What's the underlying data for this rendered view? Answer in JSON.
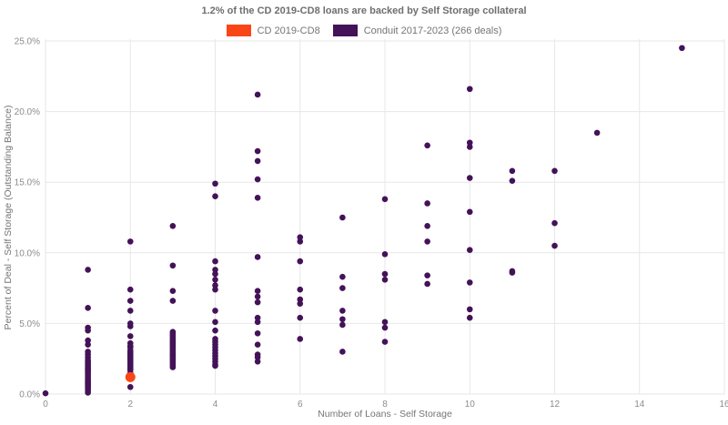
{
  "chart_data": {
    "type": "scatter",
    "title": "1.2% of the CD 2019-CD8 loans are backed by Self Storage collateral",
    "xlabel": "Number of Loans - Self Storage",
    "ylabel": "Percent of Deal - Self Storage (Outstanding Balance)",
    "xlim": [
      0,
      16
    ],
    "ylim": [
      0,
      25
    ],
    "x_ticks": [
      0,
      2,
      4,
      6,
      8,
      10,
      12,
      14,
      16
    ],
    "y_ticks": [
      0,
      5,
      10,
      15,
      20,
      25
    ],
    "y_tick_labels": [
      "0.0%",
      "5.0%",
      "10.0%",
      "15.0%",
      "20.0%",
      "25.0%"
    ],
    "grid": true,
    "legend_position": "top-center",
    "series": [
      {
        "name": "CD 2019-CD8",
        "color": "#fa4616",
        "marker_radius": 5.5,
        "points": [
          [
            2,
            1.2
          ]
        ]
      },
      {
        "name": "Conduit 2017-2023 (266 deals)",
        "color": "#441258",
        "marker_radius": 3.3,
        "points": [
          [
            0,
            0.05
          ],
          [
            1,
            8.8
          ],
          [
            1,
            6.1
          ],
          [
            1,
            4.7
          ],
          [
            1,
            4.5
          ],
          [
            1,
            3.8
          ],
          [
            1,
            3.5
          ],
          [
            1,
            3.0
          ],
          [
            1,
            2.8
          ],
          [
            1,
            2.6
          ],
          [
            1,
            2.4
          ],
          [
            1,
            2.3
          ],
          [
            1,
            2.2
          ],
          [
            1,
            2.1
          ],
          [
            1,
            2.0
          ],
          [
            1,
            1.9
          ],
          [
            1,
            1.8
          ],
          [
            1,
            1.7
          ],
          [
            1,
            1.6
          ],
          [
            1,
            1.5
          ],
          [
            1,
            1.4
          ],
          [
            1,
            1.3
          ],
          [
            1,
            1.2
          ],
          [
            1,
            1.1
          ],
          [
            1,
            1.0
          ],
          [
            1,
            0.9
          ],
          [
            1,
            0.8
          ],
          [
            1,
            0.7
          ],
          [
            1,
            0.6
          ],
          [
            1,
            0.5
          ],
          [
            1,
            0.4
          ],
          [
            1,
            0.3
          ],
          [
            1,
            0.2
          ],
          [
            1,
            0.1
          ],
          [
            2,
            10.8
          ],
          [
            2,
            7.4
          ],
          [
            2,
            6.6
          ],
          [
            2,
            5.9
          ],
          [
            2,
            5.0
          ],
          [
            2,
            4.8
          ],
          [
            2,
            4.1
          ],
          [
            2,
            3.6
          ],
          [
            2,
            3.4
          ],
          [
            2,
            3.3
          ],
          [
            2,
            3.1
          ],
          [
            2,
            3.0
          ],
          [
            2,
            2.9
          ],
          [
            2,
            2.8
          ],
          [
            2,
            2.7
          ],
          [
            2,
            2.6
          ],
          [
            2,
            2.5
          ],
          [
            2,
            2.4
          ],
          [
            2,
            2.3
          ],
          [
            2,
            2.2
          ],
          [
            2,
            2.1
          ],
          [
            2,
            2.0
          ],
          [
            2,
            1.9
          ],
          [
            2,
            1.8
          ],
          [
            2,
            1.7
          ],
          [
            2,
            1.5
          ],
          [
            2,
            0.5
          ],
          [
            3,
            11.9
          ],
          [
            3,
            9.1
          ],
          [
            3,
            7.3
          ],
          [
            3,
            6.6
          ],
          [
            3,
            4.4
          ],
          [
            3,
            4.3
          ],
          [
            3,
            4.2
          ],
          [
            3,
            4.1
          ],
          [
            3,
            4.0
          ],
          [
            3,
            3.9
          ],
          [
            3,
            3.8
          ],
          [
            3,
            3.7
          ],
          [
            3,
            3.6
          ],
          [
            3,
            3.5
          ],
          [
            3,
            3.4
          ],
          [
            3,
            3.3
          ],
          [
            3,
            3.2
          ],
          [
            3,
            3.1
          ],
          [
            3,
            3.0
          ],
          [
            3,
            2.9
          ],
          [
            3,
            2.8
          ],
          [
            3,
            2.7
          ],
          [
            3,
            2.6
          ],
          [
            3,
            2.5
          ],
          [
            3,
            2.4
          ],
          [
            3,
            2.3
          ],
          [
            3,
            2.2
          ],
          [
            3,
            2.1
          ],
          [
            3,
            2.0
          ],
          [
            3,
            1.9
          ],
          [
            4,
            14.9
          ],
          [
            4,
            14.0
          ],
          [
            4,
            9.4
          ],
          [
            4,
            8.8
          ],
          [
            4,
            8.5
          ],
          [
            4,
            8.1
          ],
          [
            4,
            7.7
          ],
          [
            4,
            7.4
          ],
          [
            4,
            5.9
          ],
          [
            4,
            5.1
          ],
          [
            4,
            4.5
          ],
          [
            4,
            3.9
          ],
          [
            4,
            3.7
          ],
          [
            4,
            3.5
          ],
          [
            4,
            3.3
          ],
          [
            4,
            3.1
          ],
          [
            4,
            2.9
          ],
          [
            4,
            2.7
          ],
          [
            4,
            2.5
          ],
          [
            4,
            2.3
          ],
          [
            4,
            2.1
          ],
          [
            4,
            2.0
          ],
          [
            5,
            21.2
          ],
          [
            5,
            17.2
          ],
          [
            5,
            16.5
          ],
          [
            5,
            15.2
          ],
          [
            5,
            13.9
          ],
          [
            5,
            9.7
          ],
          [
            5,
            7.3
          ],
          [
            5,
            6.9
          ],
          [
            5,
            6.5
          ],
          [
            5,
            5.4
          ],
          [
            5,
            5.1
          ],
          [
            5,
            4.3
          ],
          [
            5,
            3.5
          ],
          [
            5,
            2.8
          ],
          [
            5,
            2.6
          ],
          [
            5,
            2.3
          ],
          [
            6,
            11.1
          ],
          [
            6,
            10.8
          ],
          [
            6,
            9.4
          ],
          [
            6,
            7.4
          ],
          [
            6,
            6.7
          ],
          [
            6,
            6.4
          ],
          [
            6,
            5.4
          ],
          [
            6,
            3.9
          ],
          [
            7,
            12.5
          ],
          [
            7,
            8.3
          ],
          [
            7,
            7.5
          ],
          [
            7,
            5.9
          ],
          [
            7,
            5.3
          ],
          [
            7,
            4.9
          ],
          [
            7,
            3.0
          ],
          [
            8,
            13.8
          ],
          [
            8,
            9.9
          ],
          [
            8,
            8.5
          ],
          [
            8,
            8.1
          ],
          [
            8,
            5.1
          ],
          [
            8,
            4.7
          ],
          [
            8,
            3.7
          ],
          [
            9,
            17.6
          ],
          [
            9,
            13.5
          ],
          [
            9,
            11.9
          ],
          [
            9,
            10.8
          ],
          [
            9,
            8.4
          ],
          [
            9,
            7.8
          ],
          [
            10,
            21.6
          ],
          [
            10,
            17.8
          ],
          [
            10,
            17.5
          ],
          [
            10,
            15.3
          ],
          [
            10,
            12.9
          ],
          [
            10,
            10.2
          ],
          [
            10,
            7.9
          ],
          [
            10,
            6.0
          ],
          [
            10,
            5.4
          ],
          [
            11,
            15.8
          ],
          [
            11,
            15.1
          ],
          [
            11,
            8.7
          ],
          [
            11,
            8.6
          ],
          [
            12,
            15.8
          ],
          [
            12,
            12.1
          ],
          [
            12,
            10.5
          ],
          [
            13,
            18.5
          ],
          [
            15,
            24.5
          ]
        ]
      }
    ]
  }
}
